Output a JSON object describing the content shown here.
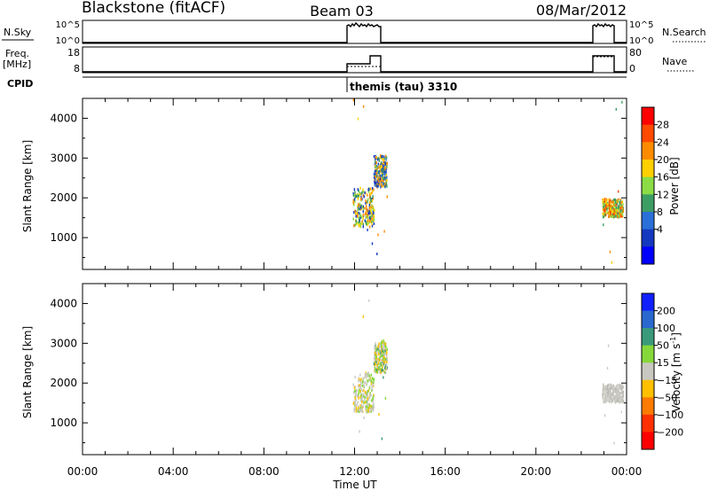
{
  "header": {
    "station": "Blackstone (fitACF)",
    "beam": "Beam 03",
    "date": "08/Mar/2012"
  },
  "small_panels": {
    "nsky": {
      "left_label": "N.Sky",
      "left_ticks": [
        "10^5",
        "10^0"
      ],
      "right_label": "N.Search",
      "right_ticks": [
        "10^5",
        "10^0"
      ]
    },
    "freq": {
      "left_label_1": "Freq.",
      "left_label_2": "[MHz]",
      "left_ticks": [
        "18",
        "8"
      ],
      "right_label": "Nave",
      "right_ticks": [
        "80",
        "0"
      ]
    },
    "cpid": {
      "label": "CPID",
      "value": "themis (tau) 3310"
    }
  },
  "chart_data": [
    {
      "type": "heatmap",
      "name": "power",
      "xlabel": "",
      "ylabel": "Slant Range [km]",
      "xlim": [
        "00:00",
        "24:00"
      ],
      "ylim": [
        200,
        4500
      ],
      "yticks": [
        1000,
        2000,
        3000,
        4000
      ],
      "colorbar": {
        "label": "Power [dB]",
        "tick_labels": [
          "28",
          "24",
          "20",
          "16",
          "12",
          "8",
          "4"
        ],
        "colors": [
          "#ff0000",
          "#ff4a00",
          "#ff8c00",
          "#ffd000",
          "#8bdc45",
          "#3d9e64",
          "#2b6fd8",
          "#1538c0",
          "#0000ff"
        ]
      },
      "clusters": [
        {
          "x_range": [
            "11:55",
            "12:50"
          ],
          "y_range": [
            1300,
            2300
          ],
          "dominant": "green/orange"
        },
        {
          "x_range": [
            "12:50",
            "13:25"
          ],
          "y_range": [
            2300,
            3100
          ],
          "dominant": "blue/orange"
        },
        {
          "x_range": [
            "22:55",
            "23:50"
          ],
          "y_range": [
            1550,
            2000
          ],
          "dominant": "orange/green"
        }
      ]
    },
    {
      "type": "heatmap",
      "name": "velocity",
      "xlabel": "Time UT",
      "ylabel": "Slant Range [km]",
      "xlim": [
        "00:00",
        "24:00"
      ],
      "xticks": [
        "00:00",
        "04:00",
        "08:00",
        "12:00",
        "16:00",
        "20:00",
        "00:00"
      ],
      "ylim": [
        200,
        4500
      ],
      "yticks": [
        1000,
        2000,
        3000,
        4000
      ],
      "colorbar": {
        "label": "Velocity [m s",
        "label_sup": "-1",
        "label_end": "]",
        "tick_labels": [
          "200",
          "100",
          "50",
          "15",
          "−15",
          "−50",
          "−100",
          "−200"
        ],
        "colors": [
          "#1020ff",
          "#2a68d0",
          "#3a9a7a",
          "#86d83a",
          "#c8c8c0",
          "#ffc000",
          "#ff7a00",
          "#ff3000",
          "#ff0000"
        ]
      },
      "clusters": [
        {
          "x_range": [
            "11:55",
            "12:50"
          ],
          "y_range": [
            1300,
            2300
          ],
          "dominant": "grey/green"
        },
        {
          "x_range": [
            "12:50",
            "13:25"
          ],
          "y_range": [
            2300,
            3100
          ],
          "dominant": "grey/green"
        },
        {
          "x_range": [
            "22:55",
            "23:50"
          ],
          "y_range": [
            1550,
            2000
          ],
          "dominant": "grey"
        }
      ]
    }
  ]
}
